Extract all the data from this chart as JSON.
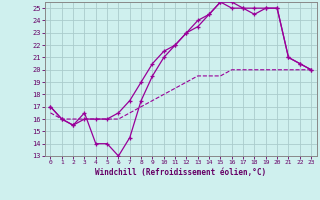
{
  "xlabel": "Windchill (Refroidissement éolien,°C)",
  "bg_color": "#cff0ee",
  "grid_color": "#aacccc",
  "line_color": "#990099",
  "xlim": [
    -0.5,
    23.5
  ],
  "ylim": [
    13,
    25.5
  ],
  "xticks": [
    0,
    1,
    2,
    3,
    4,
    5,
    6,
    7,
    8,
    9,
    10,
    11,
    12,
    13,
    14,
    15,
    16,
    17,
    18,
    19,
    20,
    21,
    22,
    23
  ],
  "yticks": [
    13,
    14,
    15,
    16,
    17,
    18,
    19,
    20,
    21,
    22,
    23,
    24,
    25
  ],
  "line1_x": [
    0,
    1,
    2,
    3,
    4,
    5,
    6,
    7,
    8,
    9,
    10,
    11,
    12,
    13,
    14,
    15,
    16,
    17,
    18,
    19,
    20,
    21,
    22,
    23
  ],
  "line1_y": [
    17,
    16,
    15.5,
    16.5,
    14,
    14,
    13,
    14.5,
    17.5,
    19.5,
    21,
    22,
    23,
    24,
    24.5,
    25.5,
    25.5,
    25,
    25,
    25,
    25,
    21,
    20.5,
    20
  ],
  "line2_x": [
    0,
    1,
    2,
    3,
    4,
    5,
    6,
    7,
    8,
    9,
    10,
    11,
    12,
    13,
    14,
    15,
    16,
    17,
    18,
    19,
    20,
    21,
    22,
    23
  ],
  "line2_y": [
    17,
    16,
    15.5,
    16,
    16,
    16,
    16.5,
    17.5,
    19,
    20.5,
    21.5,
    22,
    23,
    23.5,
    24.5,
    25.5,
    25,
    25,
    24.5,
    25,
    25,
    21,
    20.5,
    20
  ],
  "line3_x": [
    0,
    1,
    2,
    3,
    4,
    5,
    6,
    7,
    8,
    9,
    10,
    11,
    12,
    13,
    14,
    15,
    16,
    17,
    18,
    19,
    20,
    21,
    22,
    23
  ],
  "line3_y": [
    16.5,
    16,
    16,
    16,
    16,
    16,
    16,
    16.5,
    17,
    17.5,
    18,
    18.5,
    19,
    19.5,
    19.5,
    19.5,
    20,
    20,
    20,
    20,
    20,
    20,
    20,
    20
  ]
}
